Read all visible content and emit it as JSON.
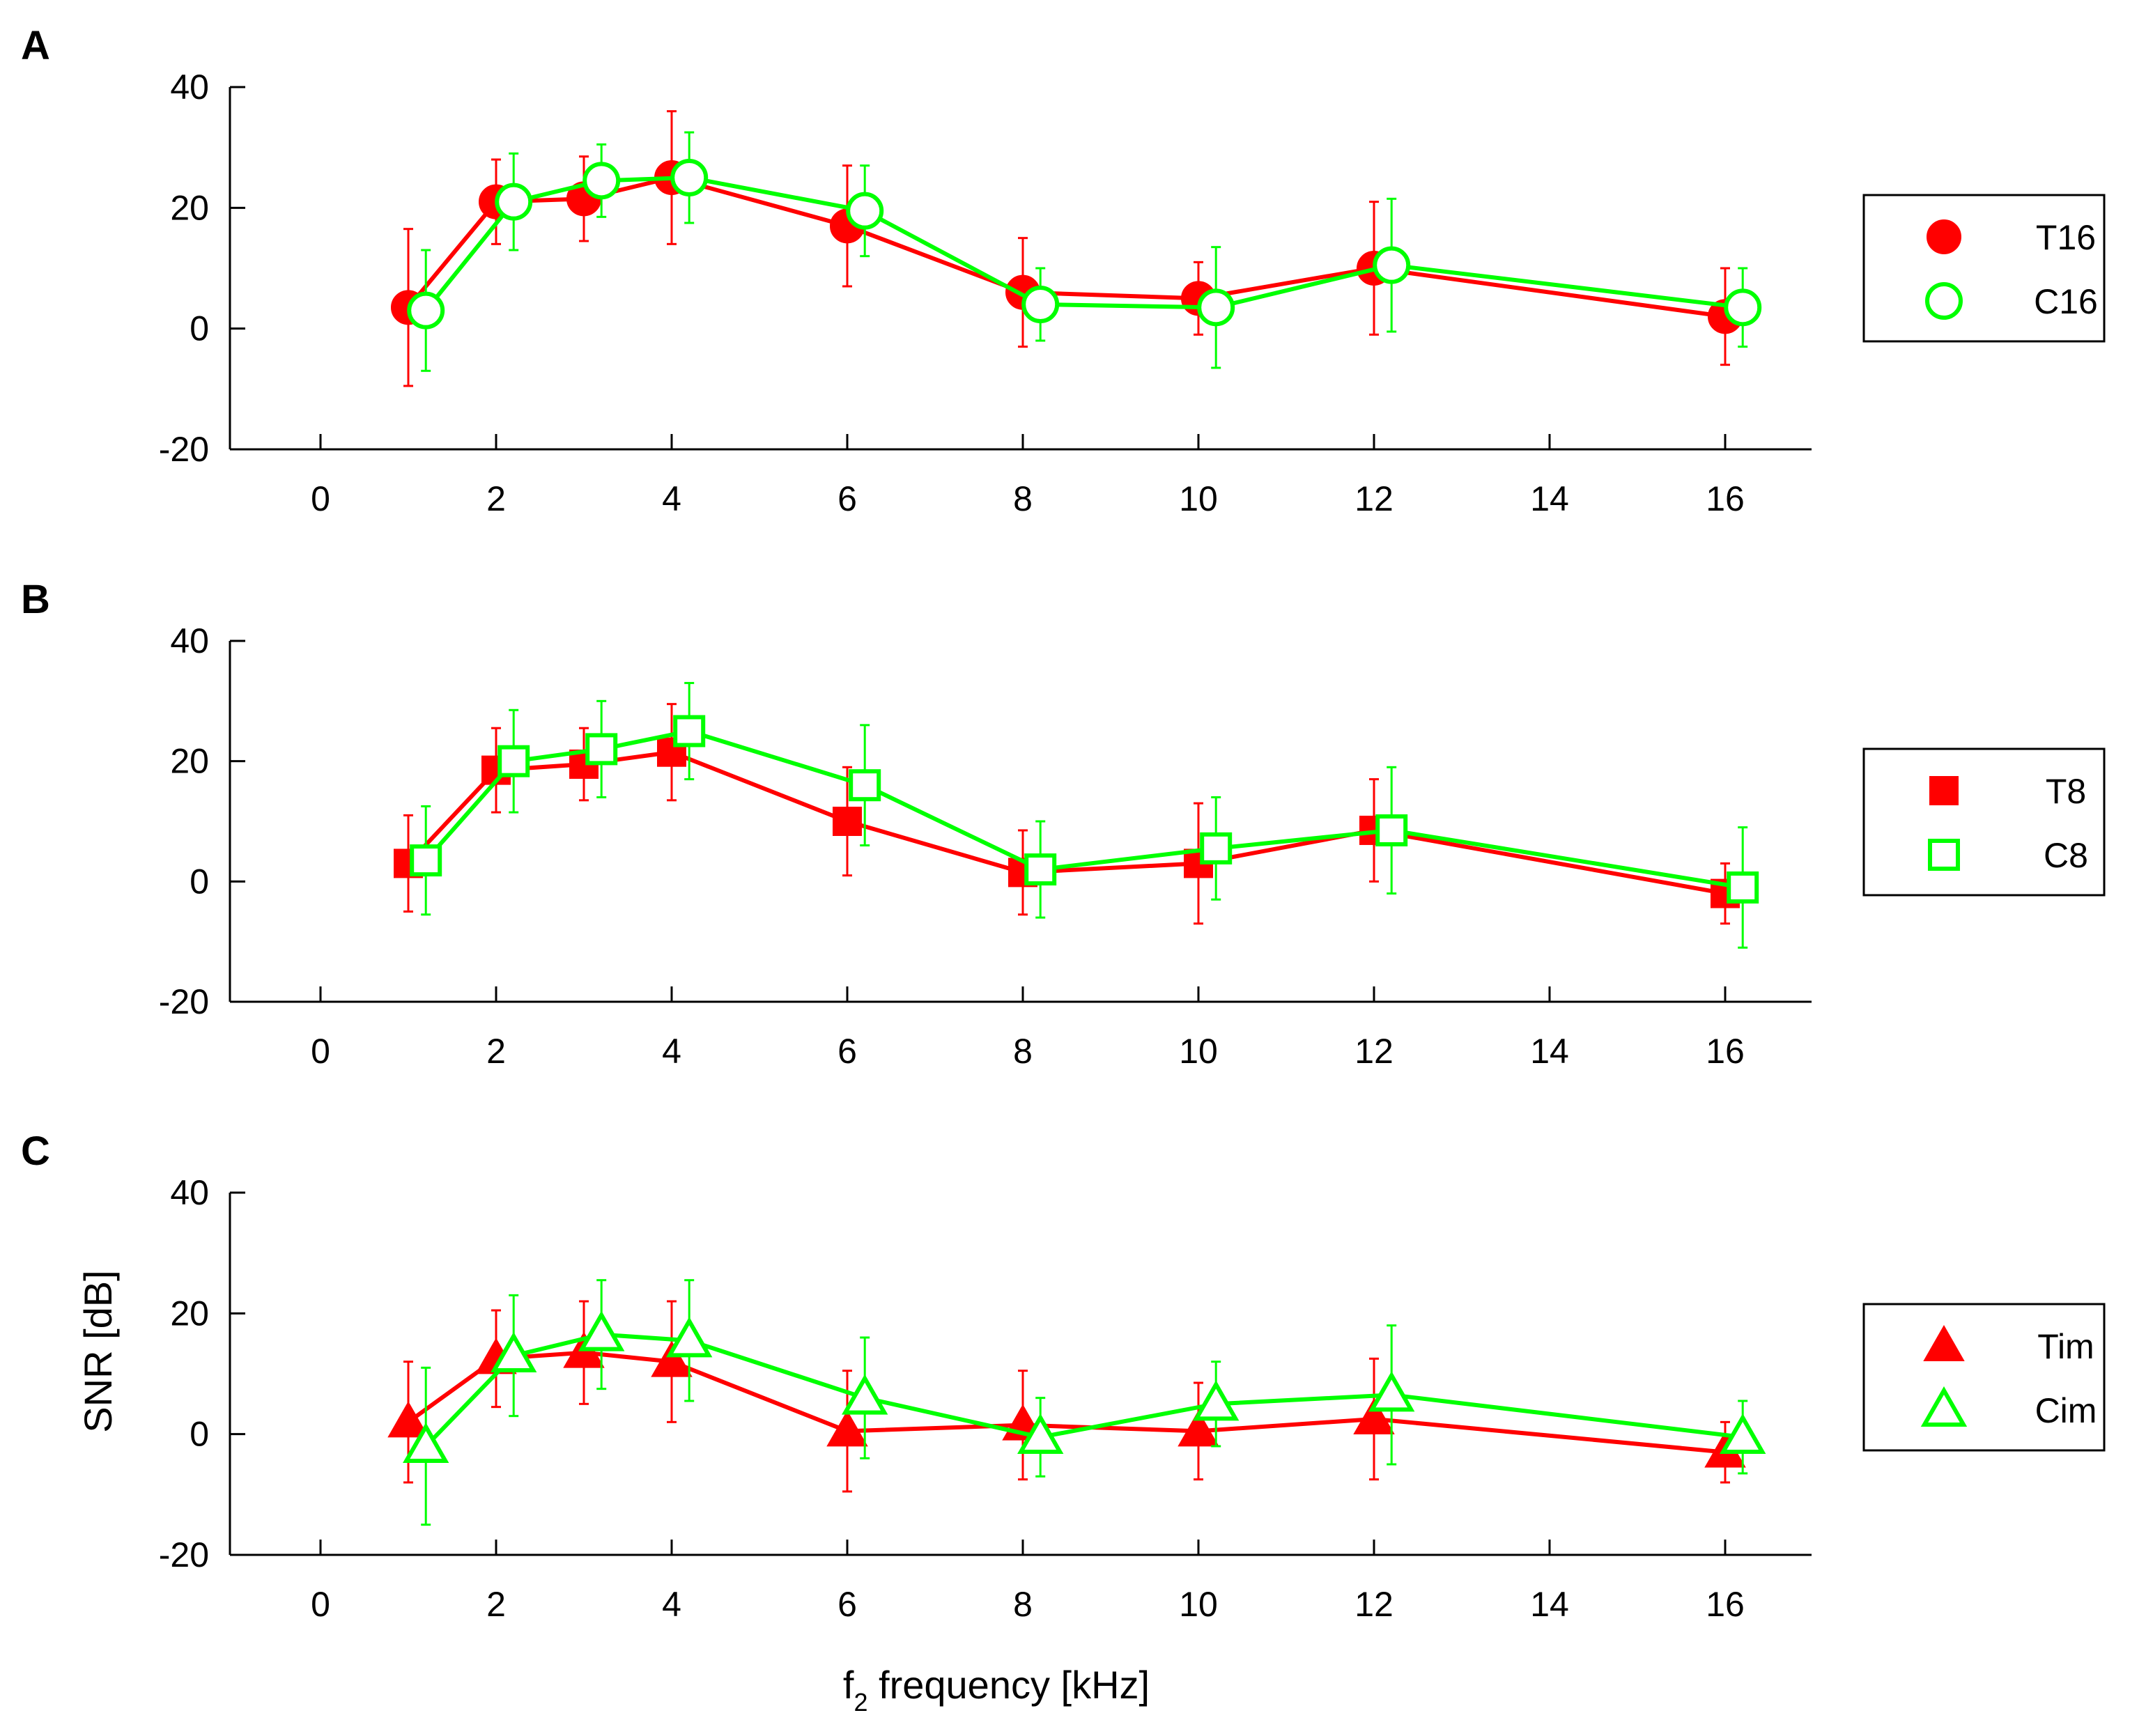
{
  "figure": {
    "xlabel_main": "f",
    "xlabel_sub": "2",
    "xlabel_rest": " frequency [kHz]",
    "ylabel": "SNR [dB]"
  },
  "colors": {
    "treated": "#ff0000",
    "control": "#00ff00",
    "axis": "#000000"
  },
  "chart_data": [
    {
      "type": "scatter",
      "panel": "A",
      "ylim": [
        -20,
        40
      ],
      "yticks": [
        "-20",
        "0",
        "20",
        "40"
      ],
      "x_positions": [
        0,
        1,
        2,
        3,
        4,
        5,
        6,
        7,
        8,
        9,
        10
      ],
      "x_ticklabels": [
        "0",
        "2",
        "4",
        "6",
        "8",
        "10",
        "12",
        "14",
        "16"
      ],
      "x_tick_positions": [
        0,
        1,
        3,
        4,
        5,
        6,
        7,
        8,
        9
      ],
      "categories": [
        "1",
        "2",
        "3",
        "4",
        "6",
        "8",
        "10",
        "12",
        "16"
      ],
      "legend_position": "right",
      "series": [
        {
          "name": "T16",
          "marker": "circle",
          "filled": true,
          "color": "treated",
          "x": [
            0.5,
            1,
            1.5,
            2,
            3,
            4,
            5,
            6,
            8
          ],
          "y": [
            3.5,
            21,
            21.5,
            25,
            17,
            6,
            5,
            10,
            2
          ],
          "err": [
            13,
            7,
            7,
            11,
            10,
            9,
            6,
            11,
            8
          ]
        },
        {
          "name": "C16",
          "marker": "circle",
          "filled": false,
          "color": "control",
          "x": [
            0.6,
            1.1,
            1.6,
            2.1,
            3.1,
            4.1,
            5.1,
            6.1,
            8.1
          ],
          "y": [
            3,
            21,
            24.5,
            25,
            19.5,
            4,
            3.5,
            10.5,
            3.5
          ],
          "err": [
            10,
            8,
            6,
            7.5,
            7.5,
            6,
            10,
            11,
            6.5
          ]
        }
      ]
    },
    {
      "type": "scatter",
      "panel": "B",
      "ylim": [
        -20,
        40
      ],
      "yticks": [
        "-20",
        "0",
        "20",
        "40"
      ],
      "x_ticklabels": [
        "0",
        "2",
        "4",
        "6",
        "8",
        "10",
        "12",
        "14",
        "16"
      ],
      "legend_position": "right",
      "series": [
        {
          "name": "T8",
          "marker": "square",
          "filled": true,
          "color": "treated",
          "x": [
            0.5,
            1,
            1.5,
            2,
            3,
            4,
            5,
            6,
            8
          ],
          "y": [
            3,
            18.5,
            19.5,
            21.5,
            10,
            1.5,
            3,
            8.5,
            -2
          ],
          "err": [
            8,
            7,
            6,
            8,
            9,
            7,
            10,
            8.5,
            5
          ]
        },
        {
          "name": "C8",
          "marker": "square",
          "filled": false,
          "color": "control",
          "x": [
            0.6,
            1.1,
            1.6,
            2.1,
            3.1,
            4.1,
            5.1,
            6.1,
            8.1
          ],
          "y": [
            3.5,
            20,
            22,
            25,
            16,
            2,
            5.5,
            8.5,
            -1
          ],
          "err": [
            9,
            8.5,
            8,
            8,
            10,
            8,
            8.5,
            10.5,
            10
          ]
        }
      ]
    },
    {
      "type": "scatter",
      "panel": "C",
      "ylim": [
        -20,
        40
      ],
      "yticks": [
        "-20",
        "0",
        "20",
        "40"
      ],
      "x_ticklabels": [
        "0",
        "2",
        "4",
        "6",
        "8",
        "10",
        "12",
        "14",
        "16"
      ],
      "legend_position": "right",
      "series": [
        {
          "name": "Tim",
          "marker": "triangle",
          "filled": true,
          "color": "treated",
          "x": [
            0.5,
            1,
            1.5,
            2,
            3,
            4,
            5,
            6,
            8
          ],
          "y": [
            2,
            12.5,
            13.5,
            12,
            0.5,
            1.5,
            0.5,
            2.5,
            -3
          ],
          "err": [
            10,
            8,
            8.5,
            10,
            10,
            9,
            8,
            10,
            5
          ]
        },
        {
          "name": "Cim",
          "marker": "triangle",
          "filled": false,
          "color": "control",
          "x": [
            0.6,
            1.1,
            1.6,
            2.1,
            3.1,
            4.1,
            5.1,
            6.1,
            8.1
          ],
          "y": [
            -2,
            13,
            16.5,
            15.5,
            6,
            -0.5,
            5,
            6.5,
            -0.5
          ],
          "err": [
            13,
            10,
            9,
            10,
            10,
            6.5,
            7,
            11.5,
            6
          ]
        }
      ]
    }
  ]
}
